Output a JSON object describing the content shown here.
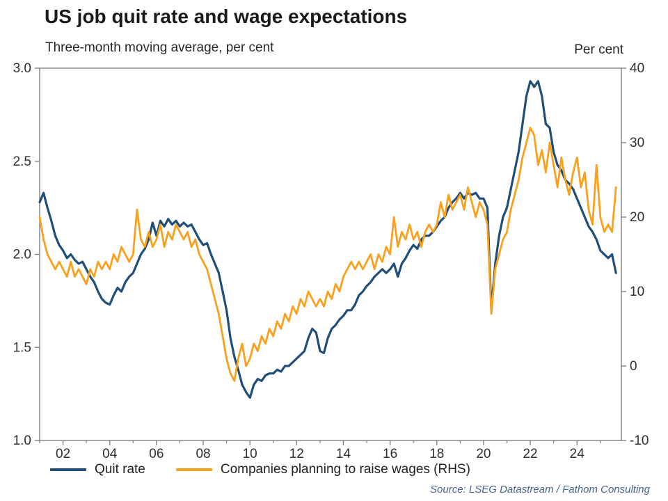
{
  "header": {
    "title": "US job quit rate and wage expectations",
    "subtitle": "Three-month moving average, per cent",
    "right_axis_title": "Per cent"
  },
  "legend": {
    "items": [
      {
        "label": "Quit rate",
        "color": "#1f4e79"
      },
      {
        "label": "Companies planning to raise wages (RHS)",
        "color": "#f9a11e"
      }
    ]
  },
  "source": "Source: LSEG Datastream / Fathom Consulting",
  "colors": {
    "quit_rate_line": "#1f4e79",
    "wage_line": "#f9a11e",
    "axis": "#7f7f7f",
    "tick_text": "#303030"
  },
  "chart_data": {
    "type": "line",
    "title": "US job quit rate and wage expectations",
    "subtitle": "Three-month moving average, per cent",
    "x_start": 2001.0,
    "x_step_years": 0.166667,
    "x_range": [
      2001.0,
      2025.9
    ],
    "axes": {
      "left": {
        "min": 1.0,
        "max": 3.0,
        "ticks": [
          {
            "v": 1.0,
            "label": "1.0"
          },
          {
            "v": 1.5,
            "label": "1.5"
          },
          {
            "v": 2.0,
            "label": "2.0"
          },
          {
            "v": 2.5,
            "label": "2.5"
          },
          {
            "v": 3.0,
            "label": "3.0"
          }
        ]
      },
      "right": {
        "min": -10,
        "max": 40,
        "title": "Per cent",
        "ticks": [
          {
            "v": -10,
            "label": "-10"
          },
          {
            "v": 0,
            "label": "0"
          },
          {
            "v": 10,
            "label": "10"
          },
          {
            "v": 20,
            "label": "20"
          },
          {
            "v": 30,
            "label": "30"
          },
          {
            "v": 40,
            "label": "40"
          }
        ]
      },
      "x": {
        "ticks": [
          {
            "v": 2002,
            "label": "02"
          },
          {
            "v": 2004,
            "label": "04"
          },
          {
            "v": 2006,
            "label": "06"
          },
          {
            "v": 2008,
            "label": "08"
          },
          {
            "v": 2010,
            "label": "10"
          },
          {
            "v": 2012,
            "label": "12"
          },
          {
            "v": 2014,
            "label": "14"
          },
          {
            "v": 2016,
            "label": "16"
          },
          {
            "v": 2018,
            "label": "18"
          },
          {
            "v": 2020,
            "label": "20"
          },
          {
            "v": 2022,
            "label": "22"
          },
          {
            "v": 2024,
            "label": "24"
          }
        ],
        "minor_ticks_years": [
          2001,
          2003,
          2005,
          2007,
          2009,
          2011,
          2013,
          2015,
          2017,
          2019,
          2021,
          2023,
          2025
        ]
      }
    },
    "series": [
      {
        "name": "Quit rate",
        "axis": "left",
        "color": "#1f4e79",
        "values": [
          2.28,
          2.33,
          2.25,
          2.18,
          2.1,
          2.05,
          2.02,
          1.98,
          2.0,
          1.97,
          1.95,
          1.96,
          1.92,
          1.88,
          1.85,
          1.8,
          1.76,
          1.74,
          1.73,
          1.78,
          1.82,
          1.8,
          1.85,
          1.88,
          1.9,
          1.95,
          2.0,
          2.03,
          2.08,
          2.17,
          2.1,
          2.18,
          2.15,
          2.19,
          2.16,
          2.18,
          2.15,
          2.17,
          2.15,
          2.16,
          2.12,
          2.08,
          2.05,
          2.06,
          2.0,
          1.95,
          1.9,
          1.8,
          1.7,
          1.55,
          1.45,
          1.38,
          1.3,
          1.26,
          1.23,
          1.3,
          1.33,
          1.32,
          1.35,
          1.36,
          1.36,
          1.38,
          1.37,
          1.4,
          1.4,
          1.42,
          1.44,
          1.46,
          1.48,
          1.55,
          1.6,
          1.58,
          1.48,
          1.47,
          1.55,
          1.6,
          1.62,
          1.65,
          1.67,
          1.7,
          1.7,
          1.73,
          1.78,
          1.8,
          1.83,
          1.85,
          1.88,
          1.9,
          1.92,
          1.9,
          1.92,
          1.95,
          1.88,
          1.95,
          1.98,
          2.02,
          2.05,
          2.03,
          2.08,
          2.1,
          2.1,
          2.12,
          2.15,
          2.18,
          2.2,
          2.25,
          2.28,
          2.3,
          2.33,
          2.3,
          2.33,
          2.32,
          2.33,
          2.3,
          2.3,
          2.25,
          1.7,
          1.95,
          2.1,
          2.2,
          2.25,
          2.35,
          2.45,
          2.55,
          2.7,
          2.85,
          2.93,
          2.9,
          2.93,
          2.85,
          2.7,
          2.68,
          2.55,
          2.48,
          2.45,
          2.4,
          2.38,
          2.35,
          2.3,
          2.25,
          2.2,
          2.15,
          2.12,
          2.08,
          2.02,
          2.0,
          1.98,
          2.0,
          1.9
        ]
      },
      {
        "name": "Companies planning to raise wages (RHS)",
        "axis": "right",
        "color": "#f9a11e",
        "values": [
          20,
          17,
          15,
          14,
          13,
          14,
          13,
          12,
          14,
          12,
          13,
          12,
          11,
          13,
          12,
          14,
          13,
          14,
          13,
          15,
          14,
          16,
          15,
          14,
          15,
          21,
          17,
          16,
          18,
          16,
          17,
          19,
          16,
          18,
          17,
          19,
          18,
          17,
          18,
          16,
          17,
          15,
          14,
          13,
          11,
          9,
          7,
          4,
          1,
          -1,
          -2,
          1,
          3,
          0,
          1,
          3,
          2,
          4,
          3,
          5,
          4,
          6,
          5,
          7,
          6,
          8,
          7,
          9,
          8,
          10,
          9,
          8,
          9,
          8,
          10,
          9,
          11,
          10,
          12,
          13,
          14,
          13,
          14,
          13,
          14,
          15,
          13,
          15,
          14,
          16,
          15,
          20,
          16,
          18,
          17,
          19,
          17,
          18,
          16,
          18,
          19,
          18,
          19,
          22,
          20,
          23,
          21,
          22,
          23,
          21,
          24,
          22,
          20,
          22,
          21,
          19,
          7,
          13,
          15,
          17,
          18,
          21,
          23,
          25,
          28,
          30,
          32,
          31,
          27,
          29,
          26,
          30,
          27,
          24,
          28,
          25,
          23,
          26,
          28,
          24,
          26,
          21,
          19,
          27,
          20,
          18,
          19,
          18,
          24
        ]
      }
    ]
  }
}
